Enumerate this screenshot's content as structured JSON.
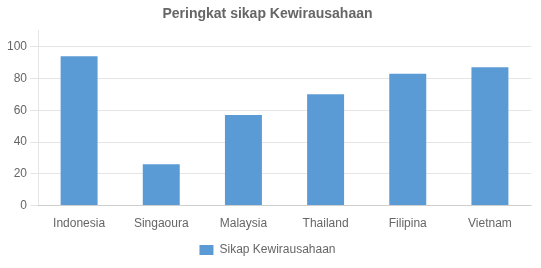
{
  "chart_data": {
    "type": "bar",
    "title": "Peringkat sikap Kewirausahaan",
    "categories": [
      "Indonesia",
      "Singaoura",
      "Malaysia",
      "Thailand",
      "Filipina",
      "Vietnam"
    ],
    "series": [
      {
        "name": "Sikap Kewirausahaan",
        "color": "#5B9BD5",
        "values": [
          94,
          26,
          57,
          70,
          83,
          87
        ]
      }
    ],
    "ylim": [
      0,
      110
    ],
    "yticks": [
      0,
      20,
      40,
      60,
      80,
      100
    ],
    "grid": true,
    "legend": "bottom"
  }
}
